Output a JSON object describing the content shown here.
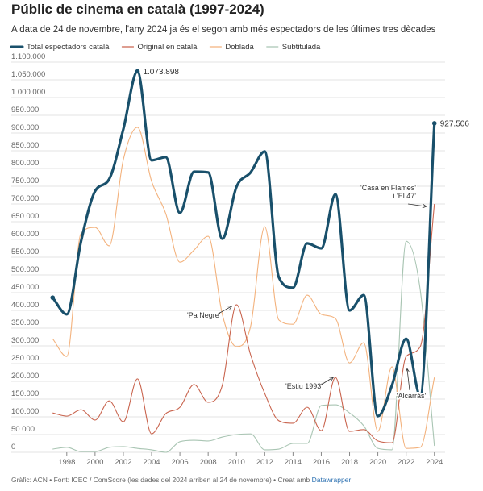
{
  "chart_data": {
    "type": "line",
    "title": "Públic de cinema en català (1997-2024)",
    "subtitle": "A data de 24 de novembre, l'any 2024 ja és el segon amb més espectadors de les últimes tres dècades",
    "x": [
      1997,
      1998,
      1999,
      2000,
      2001,
      2002,
      2003,
      2004,
      2005,
      2006,
      2007,
      2008,
      2009,
      2010,
      2011,
      2012,
      2013,
      2014,
      2015,
      2016,
      2017,
      2018,
      2019,
      2020,
      2021,
      2022,
      2023,
      2024
    ],
    "series": [
      {
        "name": "Total espectadors català",
        "color": "#19506b",
        "width": 3,
        "values": [
          436000,
          389000,
          593000,
          736000,
          770000,
          911000,
          1073898,
          823000,
          832000,
          675000,
          791000,
          789000,
          602000,
          748000,
          789000,
          848000,
          493000,
          464000,
          589000,
          575000,
          727000,
          400000,
          443000,
          102000,
          189000,
          320000,
          160000,
          927506
        ],
        "value_labels": [
          null,
          null,
          null,
          null,
          null,
          null,
          "1.073.898",
          null,
          null,
          null,
          null,
          null,
          null,
          null,
          null,
          null,
          null,
          null,
          null,
          null,
          null,
          null,
          null,
          null,
          null,
          null,
          null,
          "927.506"
        ]
      },
      {
        "name": "Original en català",
        "color": "#c9654f",
        "width": 1,
        "values": [
          111000,
          102000,
          120000,
          91000,
          145000,
          86000,
          207000,
          52000,
          109000,
          127000,
          191000,
          141000,
          189000,
          416000,
          275000,
          166000,
          89000,
          82000,
          127000,
          61000,
          211000,
          59000,
          64000,
          32000,
          27000,
          270000,
          298000,
          700000
        ]
      },
      {
        "name": "Doblada",
        "color": "#f3b27d",
        "width": 1,
        "values": [
          320000,
          270000,
          616000,
          634000,
          582000,
          825000,
          916000,
          764000,
          673000,
          536000,
          570000,
          609000,
          389000,
          298000,
          355000,
          636000,
          373000,
          361000,
          443000,
          389000,
          377000,
          252000,
          309000,
          59000,
          241000,
          11000,
          14000,
          211000
        ]
      },
      {
        "name": "Subtitulada",
        "color": "#a9c5b3",
        "width": 1,
        "values": [
          9000,
          14000,
          2000,
          2000,
          14000,
          16000,
          11000,
          7000,
          0,
          30000,
          34000,
          32000,
          43000,
          50000,
          52000,
          7000,
          9000,
          25000,
          25000,
          132000,
          134000,
          111000,
          75000,
          11000,
          7000,
          595000,
          457000,
          18000
        ]
      }
    ],
    "xlim": [
      1996.7,
      2024.3
    ],
    "xticks": [
      1998,
      2000,
      2002,
      2004,
      2006,
      2008,
      2010,
      2012,
      2014,
      2016,
      2018,
      2020,
      2022,
      2024
    ],
    "ylim": [
      0,
      1100000
    ],
    "yticks": [
      0,
      {
        "value": 50000,
        "label": "50.000"
      },
      {
        "value": 100000,
        "label": "100.000"
      },
      {
        "value": 150000,
        "label": "150.000"
      },
      {
        "value": 200000,
        "label": "200.000"
      },
      {
        "value": 250000,
        "label": "250.000"
      },
      {
        "value": 300000,
        "label": "300.000"
      },
      {
        "value": 350000,
        "label": "350.000"
      },
      {
        "value": 400000,
        "label": "400.000"
      },
      {
        "value": 450000,
        "label": "450.000"
      },
      {
        "value": 500000,
        "label": "500.000"
      },
      {
        "value": 550000,
        "label": "550.000"
      },
      {
        "value": 600000,
        "label": "600.000"
      },
      {
        "value": 650000,
        "label": "650.000"
      },
      {
        "value": 700000,
        "label": "700.000"
      },
      {
        "value": 750000,
        "label": "750.000"
      },
      {
        "value": 800000,
        "label": "800.000"
      },
      {
        "value": 850000,
        "label": "850.000"
      },
      {
        "value": 900000,
        "label": "900.000"
      },
      {
        "value": 950000,
        "label": "950.000"
      },
      {
        "value": 1000000,
        "label": "1.000.000"
      },
      {
        "value": 1050000,
        "label": "1.050.000"
      },
      {
        "value": 1100000,
        "label": "1.100.000"
      }
    ],
    "grid": true,
    "annotations": [
      {
        "lines": [
          "'Pa Negre'"
        ]
      },
      {
        "lines": [
          "'Estiu 1993'"
        ]
      },
      {
        "lines": [
          "'Casa en Flames'",
          "i 'El 47'"
        ]
      },
      {
        "lines": [
          "'Alcarràs'"
        ]
      }
    ],
    "source": "Gràfic: ACN • Font: ICEC / ComScore (les dades del 2024 arriben al 24 de novembre) • Creat amb",
    "source_link": "Datawrapper"
  }
}
